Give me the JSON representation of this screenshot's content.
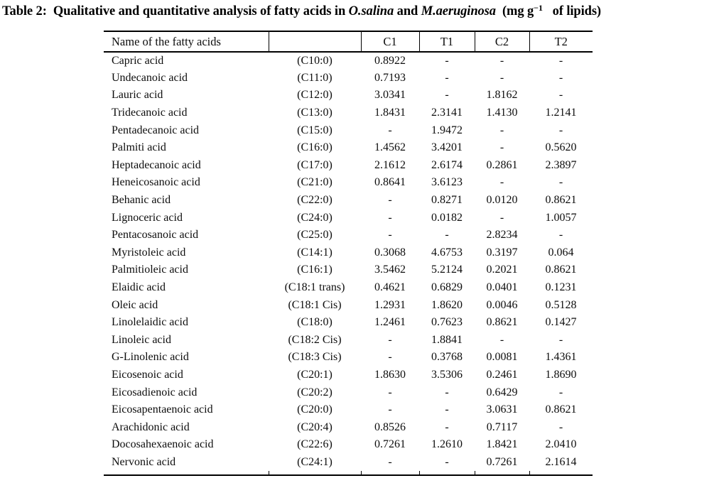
{
  "colors": {
    "background": "#ffffff",
    "text": "#0d0d0d",
    "rule": "#000000"
  },
  "title": {
    "label": "Table 2:",
    "body": "  Qualitative and quantitative analysis of fatty acids in ",
    "species1": "O.salina",
    "and": " and ",
    "species2": "M.aeruginosa",
    "unit_prefix": "  (mg g",
    "unit_sup": "−1",
    "unit_suffix": "   of lipids)"
  },
  "table": {
    "columns": [
      "Name of the fatty acids",
      "",
      "C1",
      "T1",
      "C2",
      "T2"
    ],
    "rows": [
      [
        "Capric acid",
        "(C10:0)",
        "0.8922",
        "-",
        "-",
        "-"
      ],
      [
        "Undecanoic acid",
        "(C11:0)",
        "0.7193",
        "-",
        "-",
        "-"
      ],
      [
        "Lauric acid",
        "(C12:0)",
        "3.0341",
        "-",
        "1.8162",
        "-"
      ],
      [
        "Tridecanoic acid",
        "(C13:0)",
        "1.8431",
        "2.3141",
        "1.4130",
        "1.2141"
      ],
      [
        "Pentadecanoic acid",
        "(C15:0)",
        "-",
        "1.9472",
        "-",
        "-"
      ],
      [
        "Palmiti acid",
        "(C16:0)",
        "1.4562",
        "3.4201",
        "-",
        "0.5620"
      ],
      [
        "Heptadecanoic acid",
        "(C17:0)",
        "2.1612",
        "2.6174",
        "0.2861",
        "2.3897"
      ],
      [
        "Heneicosanoic acid",
        "(C21:0)",
        "0.8641",
        "3.6123",
        "-",
        "-"
      ],
      [
        "Behanic acid",
        "(C22:0)",
        "-",
        "0.8271",
        "0.0120",
        "0.8621"
      ],
      [
        "Lignoceric acid",
        "(C24:0)",
        "-",
        "0.0182",
        "-",
        "1.0057"
      ],
      [
        "Pentacosanoic acid",
        "(C25:0)",
        "-",
        "-",
        "2.8234",
        "-"
      ],
      [
        "Myristoleic acid",
        "(C14:1)",
        "0.3068",
        "4.6753",
        "0.3197",
        "0.064"
      ],
      [
        "Palmitioleic acid",
        "(C16:1)",
        "3.5462",
        "5.2124",
        "0.2021",
        "0.8621"
      ],
      [
        "Elaidic acid",
        "(C18:1 trans)",
        "0.4621",
        "0.6829",
        "0.0401",
        "0.1231"
      ],
      [
        "Oleic acid",
        "(C18:1 Cis)",
        "1.2931",
        "1.8620",
        "0.0046",
        "0.5128"
      ],
      [
        "Linolelaidic acid",
        "(C18:0)",
        "1.2461",
        "0.7623",
        "0.8621",
        "0.1427"
      ],
      [
        "Linoleic acid",
        "(C18:2 Cis)",
        "-",
        "1.8841",
        "-",
        "-"
      ],
      [
        "G-Linolenic acid",
        "(C18:3 Cis)",
        "-",
        "0.3768",
        "0.0081",
        "1.4361"
      ],
      [
        "Eicosenoic acid",
        "(C20:1)",
        "1.8630",
        "3.5306",
        "0.2461",
        "1.8690"
      ],
      [
        "Eicosadienoic acid",
        "(C20:2)",
        "-",
        "-",
        "0.6429",
        "-"
      ],
      [
        "Eicosapentaenoic acid",
        "(C20:0)",
        "-",
        "-",
        "3.0631",
        "0.8621"
      ],
      [
        "Arachidonic acid",
        "(C20:4)",
        "0.8526",
        "-",
        "0.7117",
        "-"
      ],
      [
        "Docosahexaenoic acid",
        "(C22:6)",
        "0.7261",
        "1.2610",
        "1.8421",
        "2.0410"
      ],
      [
        "Nervonic acid",
        "(C24:1)",
        "-",
        "-",
        "0.7261",
        "2.1614"
      ]
    ]
  }
}
